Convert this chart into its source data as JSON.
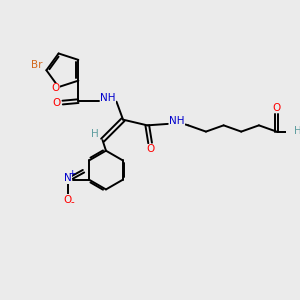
{
  "bg_color": "#ebebeb",
  "atom_colors": {
    "C": "#000000",
    "H": "#5f9ea0",
    "N": "#0000cd",
    "O": "#ff0000",
    "Br": "#d2691e",
    "default": "#000000"
  },
  "bond_color": "#000000",
  "line_width": 1.4,
  "font_size": 7.5,
  "fig_size": [
    3.0,
    3.0
  ],
  "dpi": 100
}
